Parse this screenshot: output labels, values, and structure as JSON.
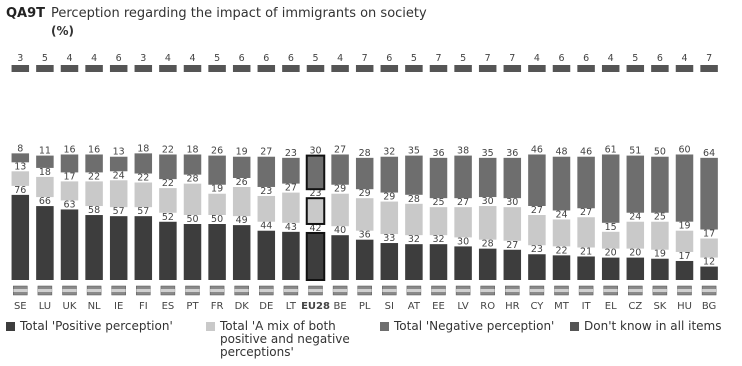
{
  "header": {
    "code": "QA9T",
    "title": "Perception regarding the impact of immigrants on society",
    "unit": "(%)"
  },
  "legend": [
    {
      "label": "Total 'Positive perception'",
      "color": "#3d3d3d"
    },
    {
      "label": "Total 'A mix of both positive and negative perceptions'",
      "color": "#c9c9c9"
    },
    {
      "label": "Total 'Negative perception'",
      "color": "#6e6e6e"
    },
    {
      "label": "Don't know in all items",
      "color": "#555555"
    }
  ],
  "chart_data": {
    "type": "bar",
    "stacked": true,
    "highlight": "EU28",
    "categories": [
      "SE",
      "LU",
      "UK",
      "NL",
      "IE",
      "FI",
      "ES",
      "PT",
      "FR",
      "DK",
      "DE",
      "LT",
      "EU28",
      "BE",
      "PL",
      "SI",
      "AT",
      "EE",
      "LV",
      "RO",
      "HR",
      "CY",
      "MT",
      "IT",
      "EL",
      "CZ",
      "SK",
      "HU",
      "BG"
    ],
    "series": [
      {
        "name": "Total 'Positive perception'",
        "color": "#3d3d3d",
        "values": [
          76,
          66,
          63,
          58,
          57,
          57,
          52,
          50,
          50,
          49,
          44,
          43,
          42,
          40,
          36,
          33,
          32,
          32,
          30,
          28,
          27,
          23,
          22,
          21,
          20,
          20,
          19,
          17,
          12
        ]
      },
      {
        "name": "Total 'A mix of both positive and negative perceptions'",
        "color": "#c9c9c9",
        "values": [
          13,
          18,
          17,
          22,
          24,
          22,
          22,
          28,
          19,
          26,
          23,
          27,
          23,
          29,
          29,
          29,
          28,
          25,
          27,
          30,
          30,
          27,
          24,
          27,
          15,
          24,
          25,
          19,
          17
        ]
      },
      {
        "name": "Total 'Negative perception'",
        "color": "#6e6e6e",
        "values": [
          8,
          11,
          16,
          16,
          13,
          18,
          22,
          18,
          26,
          19,
          27,
          23,
          30,
          27,
          28,
          32,
          35,
          36,
          38,
          35,
          36,
          46,
          48,
          46,
          61,
          51,
          50,
          60,
          64
        ]
      },
      {
        "name": "Don't know in all items",
        "color": "#555555",
        "values": [
          3,
          5,
          4,
          4,
          6,
          3,
          4,
          4,
          5,
          6,
          6,
          6,
          5,
          4,
          7,
          6,
          5,
          7,
          5,
          7,
          7,
          4,
          6,
          6,
          4,
          5,
          6,
          4,
          7
        ]
      }
    ]
  }
}
